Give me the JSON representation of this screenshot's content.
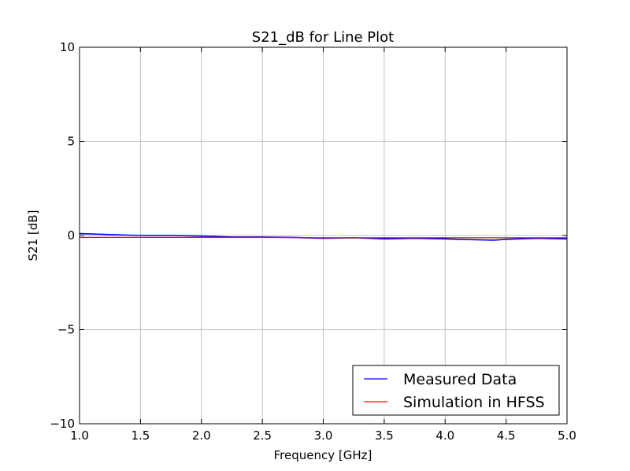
{
  "chart_data": {
    "type": "line",
    "title": "S21_dB for Line Plot",
    "xlabel": "Frequency [GHz]",
    "ylabel": "S21 [dB]",
    "xlim": [
      1.0,
      5.0
    ],
    "ylim": [
      -10,
      10
    ],
    "xticks": [
      "1.0",
      "1.5",
      "2.0",
      "2.5",
      "3.0",
      "3.5",
      "4.0",
      "4.5",
      "5.0"
    ],
    "yticks": [
      "−10",
      "−5",
      "0",
      "5",
      "10"
    ],
    "grid": true,
    "legend_position": "lower-right",
    "series": [
      {
        "name": "Measured Data",
        "color": "#0000ff",
        "x": [
          1.0,
          1.25,
          1.5,
          1.75,
          2.0,
          2.25,
          2.5,
          2.75,
          3.0,
          3.25,
          3.5,
          3.75,
          4.0,
          4.2,
          4.4,
          4.5,
          4.75,
          5.0
        ],
        "y": [
          0.1,
          0.05,
          0.0,
          0.0,
          -0.03,
          -0.08,
          -0.08,
          -0.1,
          -0.15,
          -0.12,
          -0.18,
          -0.15,
          -0.18,
          -0.22,
          -0.25,
          -0.2,
          -0.15,
          -0.18
        ]
      },
      {
        "name": "Simulation in HFSS",
        "color": "#ff0000",
        "x": [
          1.0,
          1.5,
          2.0,
          2.5,
          3.0,
          3.5,
          4.0,
          4.5,
          5.0
        ],
        "y": [
          -0.1,
          -0.1,
          -0.1,
          -0.1,
          -0.12,
          -0.12,
          -0.12,
          -0.12,
          -0.12
        ]
      }
    ]
  }
}
